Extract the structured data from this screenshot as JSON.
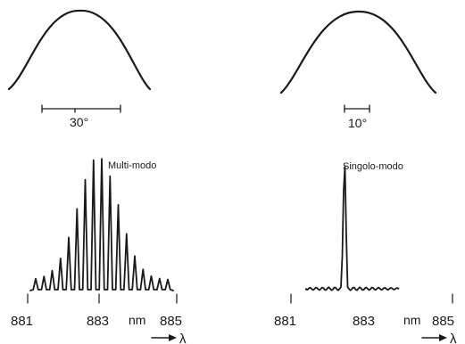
{
  "beam_profiles": [
    {
      "angle_label": "30°"
    },
    {
      "angle_label": "10°"
    }
  ],
  "spectra": [
    {
      "mode_label": "Multi-modo",
      "x_ticks": [
        "881",
        "883",
        "885"
      ],
      "unit": "nm",
      "axis_symbol": "λ",
      "peak_count": 17
    },
    {
      "mode_label": "Singolo-modo",
      "x_ticks": [
        "881",
        "883",
        "885"
      ],
      "unit": "nm",
      "axis_symbol": "λ",
      "peak_count": 1
    }
  ],
  "colors": {
    "ink": "#1a1a1a",
    "background": "#ffffff"
  }
}
